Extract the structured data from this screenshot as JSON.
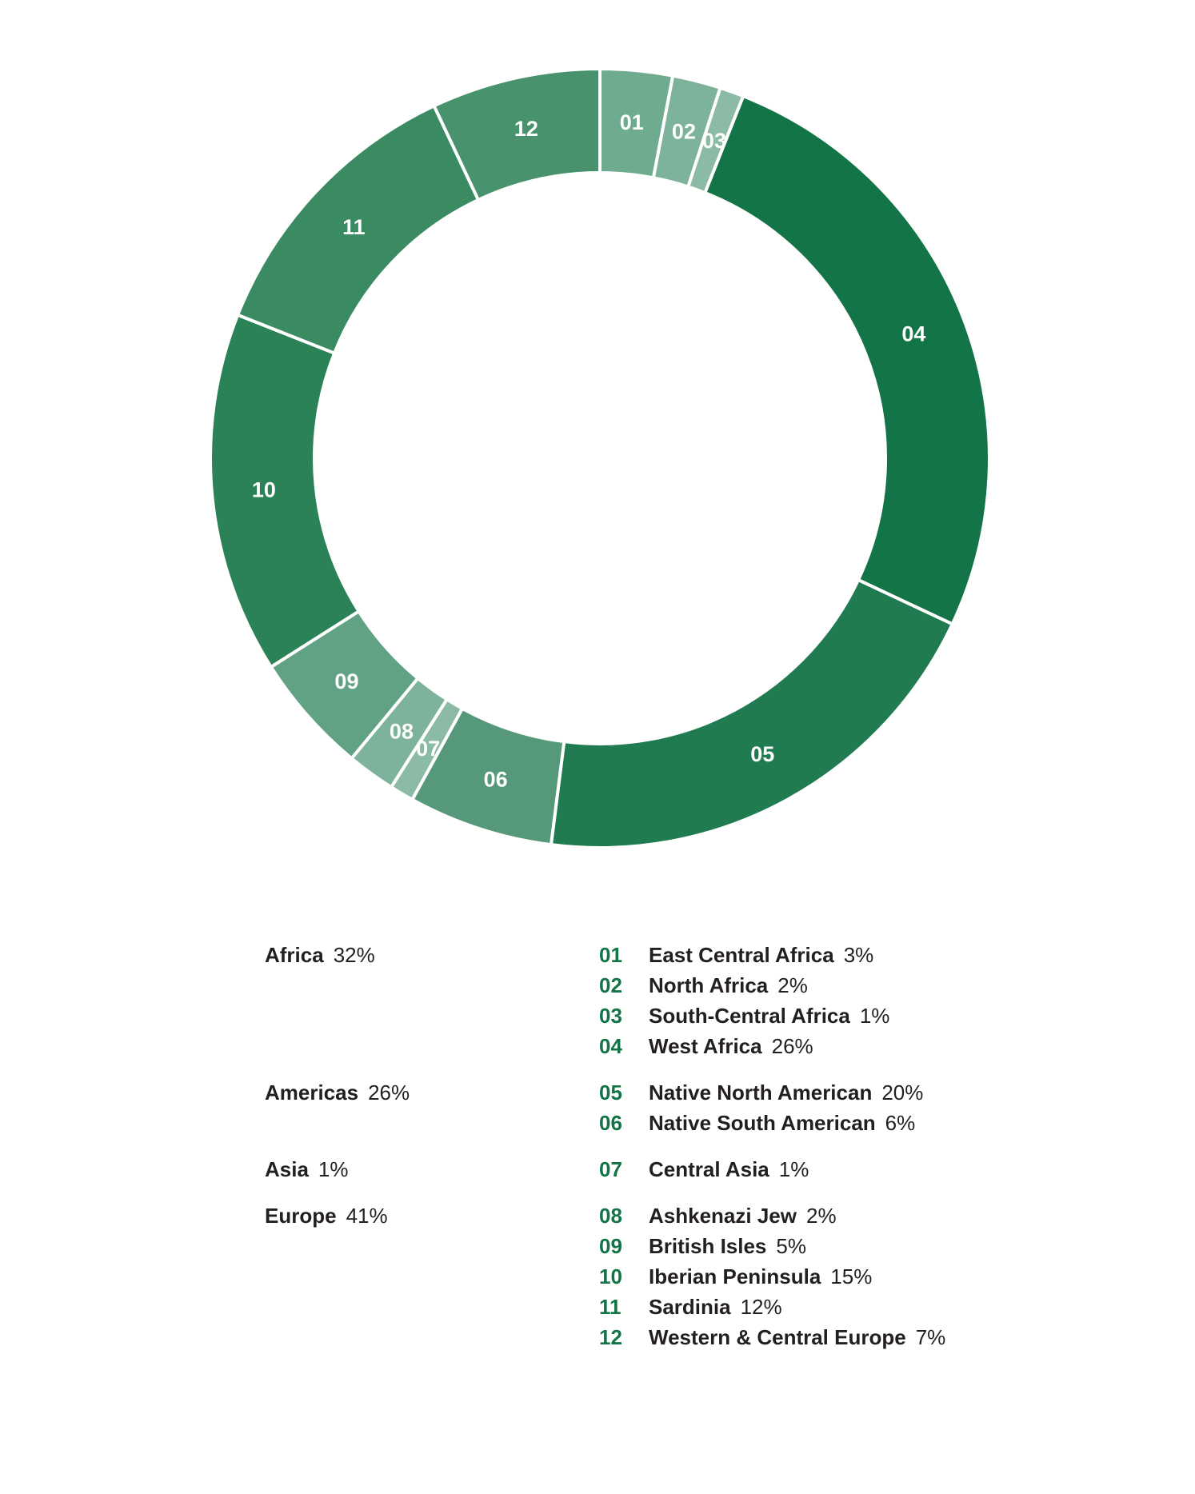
{
  "chart_data": {
    "type": "pie",
    "donut": true,
    "slices": [
      {
        "id": "01",
        "label": "East Central Africa",
        "value": 3,
        "display": "3%",
        "color": "#6fab8f"
      },
      {
        "id": "02",
        "label": "North Africa",
        "value": 2,
        "display": "2%",
        "color": "#7db39a"
      },
      {
        "id": "03",
        "label": "South-Central Africa",
        "value": 1,
        "display": "1%",
        "color": "#8bbba4"
      },
      {
        "id": "04",
        "label": "West Africa",
        "value": 26,
        "display": "26%",
        "color": "#137547"
      },
      {
        "id": "05",
        "label": "Native North American",
        "value": 20,
        "display": "20%",
        "color": "#217b50"
      },
      {
        "id": "06",
        "label": "Native South American",
        "value": 6,
        "display": "6%",
        "color": "#56997a"
      },
      {
        "id": "07",
        "label": "Central Asia",
        "value": 1,
        "display": "1%",
        "color": "#8bbba4"
      },
      {
        "id": "08",
        "label": "Ashkenazi Jew",
        "value": 2,
        "display": "2%",
        "color": "#7db39a"
      },
      {
        "id": "09",
        "label": "British Isles",
        "value": 5,
        "display": "5%",
        "color": "#62a284"
      },
      {
        "id": "10",
        "label": "Iberian Peninsula",
        "value": 15,
        "display": "15%",
        "color": "#2b8256"
      },
      {
        "id": "11",
        "label": "Sardinia",
        "value": 12,
        "display": "12%",
        "color": "#3a8a62"
      },
      {
        "id": "12",
        "label": "Western & Central Europe",
        "value": 7,
        "display": "7%",
        "color": "#48926d"
      }
    ],
    "groups": [
      {
        "name": "Africa",
        "display": "32%",
        "items": [
          "01",
          "02",
          "03",
          "04"
        ]
      },
      {
        "name": "Americas",
        "display": "26%",
        "items": [
          "05",
          "06"
        ]
      },
      {
        "name": "Asia",
        "display": "1%",
        "items": [
          "07"
        ]
      },
      {
        "name": "Europe",
        "display": "41%",
        "items": [
          "08",
          "09",
          "10",
          "11",
          "12"
        ]
      }
    ]
  }
}
